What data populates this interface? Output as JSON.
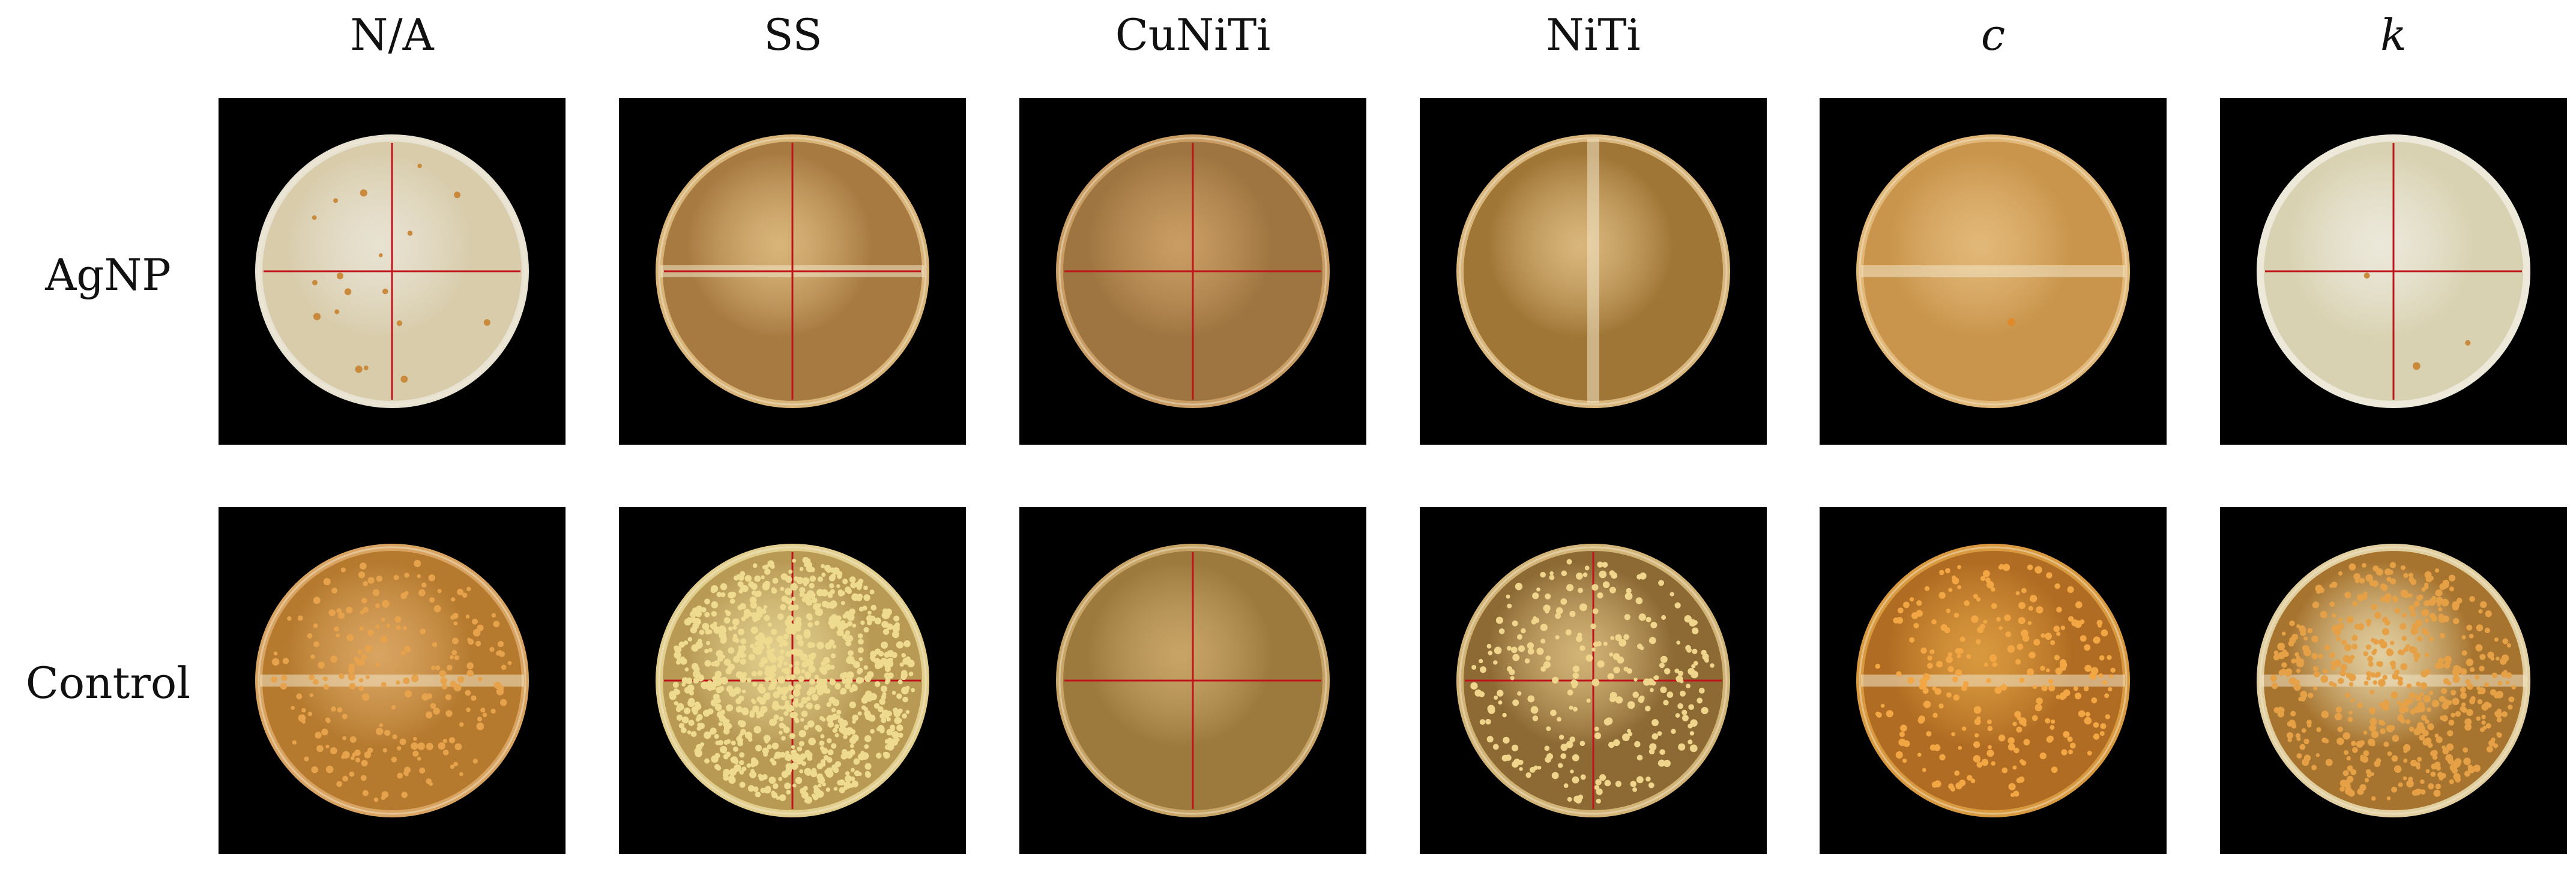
{
  "columns": [
    {
      "label": "N/A",
      "italic": false
    },
    {
      "label": "SS",
      "italic": false
    },
    {
      "label": "CuNiTi",
      "italic": false
    },
    {
      "label": "NiTi",
      "italic": false
    },
    {
      "label": "c",
      "italic": true
    },
    {
      "label": "k",
      "italic": true
    }
  ],
  "rows": [
    {
      "label": "AgNP"
    },
    {
      "label": "Control"
    }
  ],
  "plates": [
    [
      {
        "agar": "#d8ccab",
        "rim": "#e8e2d2",
        "divider": "cross-red",
        "colonies": 18,
        "colony_color": "#c98a3c"
      },
      {
        "agar": "#a77a42",
        "rim": "#d9b57a",
        "divider": "cross-red-band",
        "colonies": 0,
        "colony_color": "#c98a3c"
      },
      {
        "agar": "#9e7440",
        "rim": "#c99d63",
        "divider": "cross-red",
        "colonies": 0,
        "colony_color": "#c98a3c"
      },
      {
        "agar": "#a07636",
        "rim": "#d9b67c",
        "divider": "vertical-band",
        "colonies": 0,
        "colony_color": "#c98a3c"
      },
      {
        "agar": "#c9944b",
        "rim": "#e2b878",
        "divider": "horizontal-band",
        "colonies": 1,
        "colony_color": "#e08a2a"
      },
      {
        "agar": "#d9d2b2",
        "rim": "#ece8da",
        "divider": "cross-red",
        "colonies": 3,
        "colony_color": "#c98a3c"
      }
    ],
    [
      {
        "agar": "#b57a2e",
        "rim": "#d9a461",
        "divider": "horizontal-band",
        "colonies": 220,
        "colony_color": "#e7a24c"
      },
      {
        "agar": "#b89a55",
        "rim": "#e2cf8e",
        "divider": "cross-red",
        "colonies": 900,
        "colony_color": "#efdb8f"
      },
      {
        "agar": "#9c7a3e",
        "rim": "#c8a467",
        "divider": "cross-red",
        "colonies": 0,
        "colony_color": "#e7a24c"
      },
      {
        "agar": "#8d6a34",
        "rim": "#d3b477",
        "divider": "cross-red",
        "colonies": 260,
        "colony_color": "#f0d58c"
      },
      {
        "agar": "#b06c22",
        "rim": "#d9993e",
        "divider": "horizontal-band",
        "colonies": 240,
        "colony_color": "#f2a644"
      },
      {
        "agar": "#a7742f",
        "rim": "#e2cfa0",
        "divider": "horizontal-band",
        "colonies": 520,
        "colony_color": "#e6a146"
      }
    ]
  ]
}
